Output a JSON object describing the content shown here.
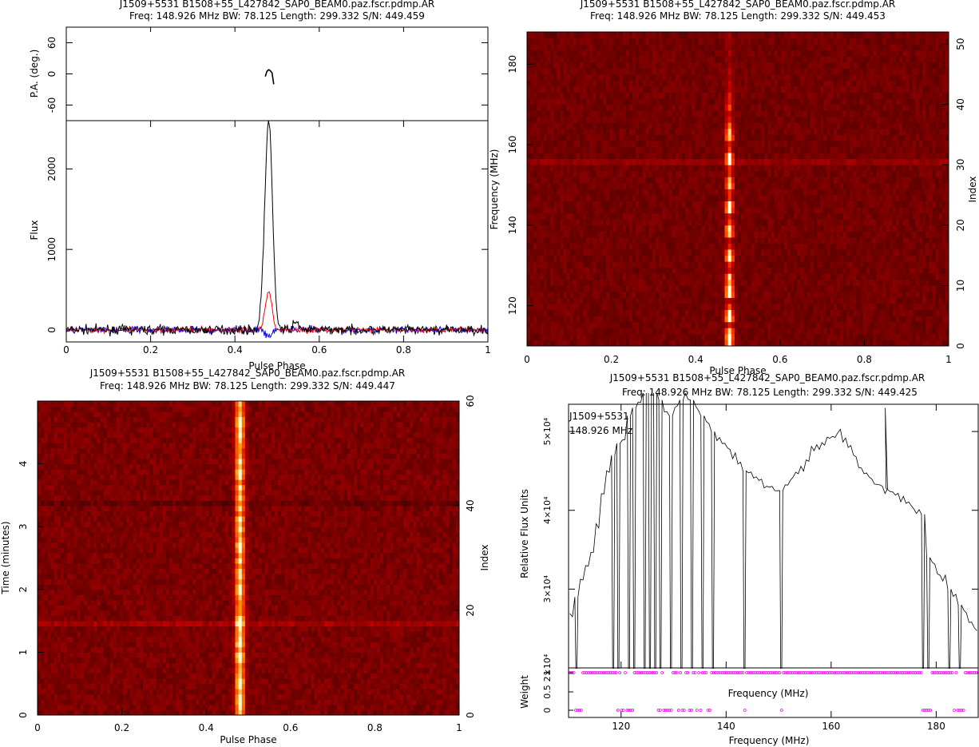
{
  "colors": {
    "flux_I": "#000000",
    "flux_L": "#ff0000",
    "flux_V": "#0000ff",
    "pa": "#000000",
    "weights": "#ff00ff",
    "bandpass": "#000000"
  },
  "chart_data": [
    {
      "id": "profile",
      "type": "line",
      "title": "J1509+5531  B1508+55_L427842_SAP0_BEAM0.paz.fscr.pdmp.AR",
      "subtitle": "Freq: 148.926 MHz  BW: 78.125  Length: 299.332  S/N: 449.459",
      "xlabel": "Pulse Phase",
      "xlim": [
        0,
        1
      ],
      "xticks": [
        "0",
        "0.2",
        "0.4",
        "0.6",
        "0.8",
        "1"
      ],
      "pa": {
        "ylabel": "P.A. (deg.)",
        "ylim": [
          -90,
          90
        ],
        "yticks": [
          "60",
          "0",
          "-60"
        ],
        "x": [
          0.472,
          0.476,
          0.48,
          0.484,
          0.488,
          0.492
        ],
        "y": [
          -5,
          5,
          8,
          6,
          2,
          -20
        ]
      },
      "flux": {
        "ylabel": "Flux",
        "ylim": [
          -150,
          2600
        ],
        "yticks": [
          "0",
          "1000",
          "2000"
        ],
        "peak_phase": 0.48,
        "series": [
          {
            "values": {
              "peak": 2600,
              "width": 0.009,
              "shoulder": 85,
              "noise": 28
            }
          },
          {
            "values": {
              "peak": 470,
              "width": 0.008,
              "noise": 18
            }
          },
          {
            "values": {
              "peak": -90,
              "width": 0.006,
              "noise": 22
            }
          }
        ]
      }
    },
    {
      "id": "freq_phase",
      "type": "heatmap",
      "title": "J1509+5531  B1508+55_L427842_SAP0_BEAM0.paz.fscr.pdmp.AR",
      "subtitle": "Freq: 148.926 MHz  BW: 78.125  Length: 299.332  S/N: 449.453",
      "xlabel": "Pulse Phase",
      "ylabel": "Frequency (MHz)",
      "y2label": "Index",
      "xlim": [
        0,
        1
      ],
      "ylim": [
        110,
        188
      ],
      "xticks": [
        "0",
        "0.2",
        "0.4",
        "0.6",
        "0.8",
        "1"
      ],
      "yticks": [
        "120",
        "140",
        "160",
        "180"
      ],
      "y2ticks": [
        "0",
        "10",
        "20",
        "30",
        "40",
        "50"
      ],
      "channels": 52,
      "pulse_phase": 0.48,
      "channel_intensity": [
        0.85,
        0.9,
        0.7,
        0.3,
        0.95,
        0.8,
        0.4,
        0.2,
        1.0,
        0.95,
        0.6,
        0.7,
        0.2,
        0.3,
        0.85,
        0.7,
        0.3,
        0.2,
        0.7,
        0.8,
        0.4,
        0.25,
        0.9,
        0.85,
        0.3,
        0.35,
        0.75,
        0.6,
        0.25,
        0.3,
        0.75,
        0.8,
        0.3,
        0.25,
        0.7,
        0.65,
        0.5,
        0.3,
        0.2,
        0.4,
        0.3,
        0.25,
        0.15,
        0.2,
        0.1,
        0.15,
        0.1,
        0.08,
        0.12,
        0.1,
        0.08,
        0.1
      ]
    },
    {
      "id": "time_phase",
      "type": "heatmap",
      "title": "J1509+5531  B1508+55_L427842_SAP0_BEAM0.paz.fscr.pdmp.AR",
      "subtitle": "Freq: 148.926 MHz  BW: 78.125  Length: 299.332  S/N: 449.447",
      "xlabel": "Pulse Phase",
      "ylabel": "Time (minutes)",
      "y2label": "Index",
      "xlim": [
        0,
        1
      ],
      "ylim": [
        0,
        5
      ],
      "xticks": [
        "0",
        "0.2",
        "0.4",
        "0.6",
        "0.8",
        "1"
      ],
      "yticks": [
        "0",
        "1",
        "2",
        "3",
        "4"
      ],
      "y2ticks": [
        "0",
        "20",
        "40",
        "60"
      ],
      "subints": 60,
      "pulse_phase": 0.48
    },
    {
      "id": "bandpass",
      "type": "line",
      "title": "J1509+5531  B1508+55_L427842_SAP0_BEAM0.paz.fscr.pdmp.AR",
      "subtitle": "Freq: 148.926 MHz  BW: 78.125  Length: 299.332  S/N: 449.425",
      "annotation": [
        "J1509+5531",
        "148.926 MHz"
      ],
      "ylabel": "Relative Flux Units",
      "xlabel": "Frequency (MHz)",
      "xlim": [
        110,
        188
      ],
      "xticks": [
        "120",
        "140",
        "160",
        "180"
      ],
      "yticks": [
        {
          "value": 20000,
          "label": "2×10⁴"
        },
        {
          "value": 30000,
          "label": "3×10⁴"
        },
        {
          "value": 40000,
          "label": "4×10⁴"
        },
        {
          "value": 50000,
          "label": "5×10⁴"
        }
      ],
      "ylim": [
        20000,
        56500
      ],
      "x": [
        110.5,
        111.5,
        112.5,
        113.5,
        114.5,
        115.5,
        116.5,
        117.5,
        118.5,
        119.5,
        120.5,
        121.5,
        122.5,
        123.5,
        124.5,
        125.5,
        126.5,
        127.5,
        128.5,
        129.5,
        130.5,
        131.5,
        132.5,
        133.5,
        134.5,
        135.5,
        136.5,
        137.5,
        138.5,
        139.5,
        140.5,
        141.5,
        142.5,
        143.5,
        144.5,
        145.5,
        146.5,
        147.5,
        148.5,
        149.5,
        150.5,
        151.5,
        152.5,
        153.5,
        154.5,
        155.5,
        156.5,
        157.5,
        158.5,
        159.5,
        160.5,
        161.5,
        162.5,
        163.5,
        164.5,
        165.5,
        166.5,
        167.5,
        168.5,
        169.5,
        170.5,
        171.5,
        172.5,
        173.5,
        174.5,
        175.5,
        176.5,
        177.5,
        178.5,
        179.5,
        180.5,
        181.5,
        182.5,
        183.5,
        184.5,
        185.5,
        186.5,
        187.5
      ],
      "y": [
        27000,
        29000,
        31000,
        33000,
        35000,
        38000,
        42000,
        45000,
        47000,
        48500,
        49000,
        52000,
        53000,
        54000,
        55000,
        55500,
        55000,
        54000,
        53000,
        52000,
        53000,
        54000,
        54500,
        54000,
        53000,
        52000,
        51000,
        50000,
        49000,
        48500,
        48000,
        47000,
        46000,
        45000,
        44500,
        44000,
        43500,
        43000,
        43000,
        42500,
        42500,
        43000,
        44000,
        45000,
        45500,
        46500,
        47500,
        48000,
        48500,
        49000,
        49500,
        50000,
        49000,
        48000,
        47000,
        45500,
        44500,
        44000,
        43500,
        43000,
        42800,
        42500,
        42000,
        41500,
        41000,
        40500,
        40000,
        39500,
        34000,
        33000,
        32000,
        31500,
        30000,
        29000,
        28000,
        27000,
        26000,
        25000
      ],
      "zapped_channels": [
        111.5,
        118.5,
        119.5,
        121.5,
        122.5,
        124.5,
        125.5,
        126.5,
        127.5,
        129.5,
        131.5,
        133.5,
        135.5,
        137.5,
        143.5,
        150.5,
        177.5,
        178.5,
        182.5,
        184.5
      ],
      "spike": {
        "x": 170.3,
        "y": 53000
      },
      "weight": {
        "label": "Weight",
        "yticks": [
          "0",
          "0.5",
          "1"
        ],
        "zero_x": [
          111.5,
          112.0,
          112.5,
          119.5,
          120.0,
          120.5,
          121.0,
          121.5,
          122.0,
          127.0,
          127.5,
          128.0,
          128.5,
          129.0,
          129.5,
          131.0,
          131.5,
          132.0,
          133.0,
          133.5,
          134.5,
          135.0,
          136.5,
          137.0,
          143.5,
          150.5,
          177.5,
          178.0,
          178.5,
          179.0,
          183.5,
          184.0,
          184.5,
          185.0
        ]
      }
    }
  ]
}
